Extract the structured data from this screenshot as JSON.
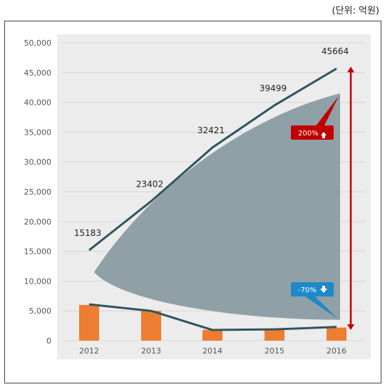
{
  "unit_label": "(단위: 억원)",
  "chart_data": {
    "type": "bar+line",
    "categories": [
      "2012",
      "2013",
      "2014",
      "2015",
      "2016"
    ],
    "ylim": [
      0,
      50000
    ],
    "yticks": [
      "0",
      "5,000",
      "10,000",
      "15,000",
      "20,000",
      "25,000",
      "30,000",
      "35,000",
      "40,000",
      "45,000",
      "50,000"
    ],
    "grid": true,
    "series": [
      {
        "type": "line",
        "values": [
          15183,
          23402,
          32421,
          39499,
          45664
        ],
        "labels": [
          "15183",
          "23402",
          "32421",
          "39499",
          "45664"
        ],
        "color": "#2f5560"
      },
      {
        "type": "line",
        "values": [
          6100,
          5000,
          1800,
          1900,
          2300
        ],
        "color": "#2f5560"
      },
      {
        "type": "bar",
        "values": [
          6000,
          5000,
          1800,
          2000,
          2200
        ],
        "color": "#ed7d31"
      }
    ],
    "annotations": [
      {
        "text": "200%",
        "arrow": "up",
        "color": "#c00000"
      },
      {
        "text": "-70%",
        "arrow": "down",
        "color": "#1e88c8"
      }
    ]
  }
}
